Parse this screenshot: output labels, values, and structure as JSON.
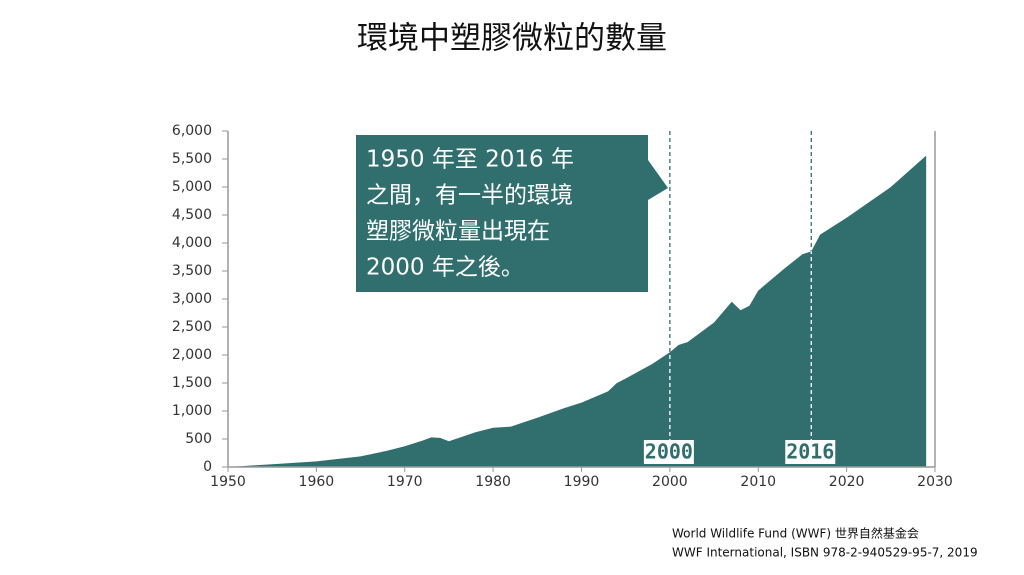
{
  "chart_data": {
    "type": "area",
    "title": "環境中塑膠微粒的數量",
    "x": [
      1950,
      1952,
      1955,
      1957,
      1960,
      1965,
      1968,
      1970,
      1972,
      1973,
      1974,
      1975,
      1978,
      1980,
      1982,
      1985,
      1988,
      1990,
      1993,
      1994,
      1995,
      1998,
      2000,
      2001,
      2002,
      2005,
      2007,
      2008,
      2009,
      2010,
      2013,
      2015,
      2016,
      2017,
      2020,
      2025,
      2029
    ],
    "values": [
      0,
      20,
      50,
      70,
      100,
      190,
      290,
      370,
      470,
      530,
      520,
      460,
      620,
      700,
      720,
      880,
      1050,
      1150,
      1350,
      1500,
      1580,
      1840,
      2050,
      2180,
      2230,
      2580,
      2950,
      2800,
      2880,
      3150,
      3550,
      3800,
      3850,
      4150,
      4450,
      5000,
      5560
    ],
    "color": "#306f6e",
    "xlim": [
      1950,
      2030
    ],
    "xticks": [
      1950,
      1960,
      1970,
      1980,
      1990,
      2000,
      2010,
      2020,
      2030
    ],
    "ylim": [
      0,
      6000
    ],
    "yticks": [
      0,
      500,
      {
        "value": 1000,
        "label": "1,000"
      },
      {
        "value": 1500,
        "label": "1,500"
      },
      {
        "value": 2000,
        "label": "2,000"
      },
      {
        "value": 2500,
        "label": "2,500"
      },
      {
        "value": 3000,
        "label": "3,000"
      },
      {
        "value": 3500,
        "label": "3,500"
      },
      {
        "value": 4000,
        "label": "4,000"
      },
      {
        "value": 4500,
        "label": "4,500"
      },
      {
        "value": 5000,
        "label": "5,000"
      },
      {
        "value": 5500,
        "label": "5,500"
      },
      {
        "value": 6000,
        "label": "6,000"
      }
    ],
    "markers": [
      {
        "x": 2000,
        "label": "2000"
      },
      {
        "x": 2016,
        "label": "2016"
      }
    ],
    "callout": [
      "1950 年至 2016 年",
      "之間，有一半的環境",
      "塑膠微粒量出現在",
      "2000 年之後。"
    ],
    "source": [
      "World Wildlife Fund (WWF) 世界自然基金会",
      "WWF International, ISBN 978-2-940529-95-7, 2019"
    ]
  }
}
